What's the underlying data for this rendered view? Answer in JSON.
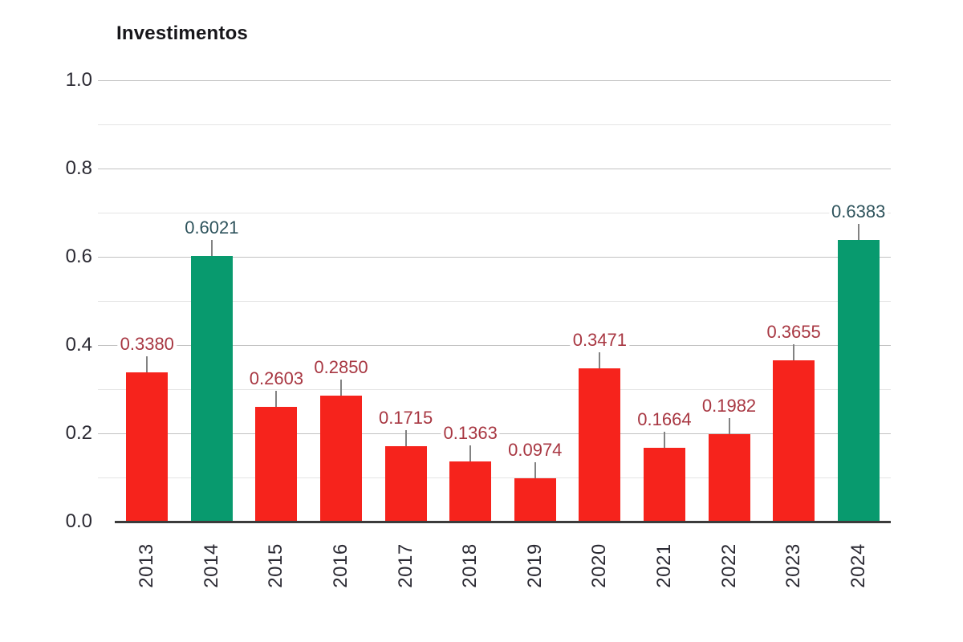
{
  "chart_data": {
    "type": "bar",
    "title": "Investimentos",
    "categories": [
      "2013",
      "2014",
      "2015",
      "2016",
      "2017",
      "2018",
      "2019",
      "2020",
      "2021",
      "2022",
      "2023",
      "2024"
    ],
    "values": [
      0.338,
      0.6021,
      0.2603,
      0.285,
      0.1715,
      0.1363,
      0.0974,
      0.3471,
      0.1664,
      0.1982,
      0.3655,
      0.6383
    ],
    "value_labels": [
      "0.3380",
      "0.6021",
      "0.2603",
      "0.2850",
      "0.1715",
      "0.1363",
      "0.0974",
      "0.3471",
      "0.1664",
      "0.1982",
      "0.3655",
      "0.6383"
    ],
    "bar_colors": [
      "#f6231c",
      "#089a6e",
      "#f6231c",
      "#f6231c",
      "#f6231c",
      "#f6231c",
      "#f6231c",
      "#f6231c",
      "#f6231c",
      "#f6231c",
      "#f6231c",
      "#089a6e"
    ],
    "label_colors": [
      "#a83742",
      "#2e535c",
      "#a83742",
      "#a83742",
      "#a83742",
      "#a83742",
      "#a83742",
      "#a83742",
      "#a83742",
      "#a83742",
      "#a83742",
      "#2e535c"
    ],
    "xlabel": "",
    "ylabel": "",
    "ylim": [
      0,
      1.0
    ],
    "ytick_labels": [
      "0.0",
      "0.2",
      "0.4",
      "0.6",
      "0.8",
      "1.0"
    ],
    "yticks_major": [
      0.0,
      0.2,
      0.4,
      0.6,
      0.8,
      1.0
    ],
    "yticks_minor": [
      0.1,
      0.3,
      0.5,
      0.7,
      0.9
    ],
    "grid": "horizontal",
    "legend": "none",
    "colors": {
      "bar_default": "#f6231c",
      "bar_highlight": "#089a6e",
      "label_default": "#a83742",
      "label_highlight": "#2e535c",
      "gridline_major": "#c2c2c2",
      "gridline_minor": "#e4e4e4",
      "axis_line": "#3b3b3b"
    }
  }
}
